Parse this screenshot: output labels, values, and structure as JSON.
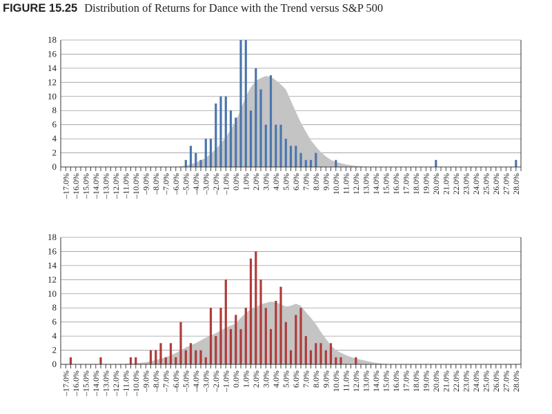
{
  "figure": {
    "label": "FIGURE 15.25",
    "title": "Distribution of Returns for Dance with the Trend versus S&P 500"
  },
  "chart_data": [
    {
      "type": "bar",
      "ylim": [
        0,
        18
      ],
      "yticks": [
        0,
        2,
        4,
        6,
        8,
        10,
        12,
        14,
        16,
        18
      ],
      "grid": true,
      "x_tick_labels": [
        "–17.0%",
        "–16.0%",
        "–15.0%",
        "–14.0%",
        "–13.0%",
        "–12.0%",
        "–11.0%",
        "–10.0%",
        "–9.0%",
        "–8.0%",
        "–7.0%",
        "–6.0%",
        "–5.0%",
        "–4.0%",
        "–3.0%",
        "–2.0%",
        "–1.0%",
        "0.0%",
        "1.0%",
        "2.0%",
        "3.0%",
        "4.0%",
        "5.0%",
        "6.0%",
        "7.0%",
        "8.0%",
        "9.0%",
        "10.0%",
        "11.0%",
        "12.0%",
        "13.0%",
        "14.0%",
        "15.0%",
        "16.0%",
        "17.0%",
        "18.0%",
        "19.0%",
        "20.0%",
        "21.0%",
        "22.0%",
        "23.0%",
        "24.0%",
        "25.0%",
        "26.0%",
        "27.0%",
        "28.0%"
      ],
      "bar_color": "#4A76AE",
      "area_color": "#C4C4C4",
      "bars": [
        {
          "x": -5.0,
          "y": 1
        },
        {
          "x": -4.5,
          "y": 3
        },
        {
          "x": -4.0,
          "y": 2
        },
        {
          "x": -3.5,
          "y": 1
        },
        {
          "x": -3.0,
          "y": 4
        },
        {
          "x": -2.5,
          "y": 4
        },
        {
          "x": -2.0,
          "y": 9
        },
        {
          "x": -1.5,
          "y": 10
        },
        {
          "x": -1.0,
          "y": 10
        },
        {
          "x": -0.5,
          "y": 8
        },
        {
          "x": 0.0,
          "y": 7
        },
        {
          "x": 0.5,
          "y": 18
        },
        {
          "x": 1.0,
          "y": 18
        },
        {
          "x": 1.5,
          "y": 8
        },
        {
          "x": 2.0,
          "y": 14
        },
        {
          "x": 2.5,
          "y": 11
        },
        {
          "x": 3.0,
          "y": 6
        },
        {
          "x": 3.5,
          "y": 13
        },
        {
          "x": 4.0,
          "y": 6
        },
        {
          "x": 4.5,
          "y": 6
        },
        {
          "x": 5.0,
          "y": 4
        },
        {
          "x": 5.5,
          "y": 3
        },
        {
          "x": 6.0,
          "y": 3
        },
        {
          "x": 6.5,
          "y": 2
        },
        {
          "x": 7.0,
          "y": 1
        },
        {
          "x": 7.5,
          "y": 1
        },
        {
          "x": 8.0,
          "y": 2
        },
        {
          "x": 10.0,
          "y": 1
        },
        {
          "x": 20.0,
          "y": 1
        },
        {
          "x": 28.0,
          "y": 1
        }
      ],
      "area": [
        {
          "x": -6.0,
          "y": 0
        },
        {
          "x": -5.0,
          "y": 0.2
        },
        {
          "x": -4.0,
          "y": 0.6
        },
        {
          "x": -3.0,
          "y": 1.3
        },
        {
          "x": -2.0,
          "y": 2.5
        },
        {
          "x": -1.0,
          "y": 4.2
        },
        {
          "x": 0.0,
          "y": 6.5
        },
        {
          "x": 0.5,
          "y": 8.2
        },
        {
          "x": 1.0,
          "y": 10.0
        },
        {
          "x": 1.5,
          "y": 11.3
        },
        {
          "x": 2.0,
          "y": 12.2
        },
        {
          "x": 2.5,
          "y": 12.6
        },
        {
          "x": 3.0,
          "y": 12.9
        },
        {
          "x": 3.5,
          "y": 12.8
        },
        {
          "x": 4.0,
          "y": 12.3
        },
        {
          "x": 4.5,
          "y": 11.7
        },
        {
          "x": 5.0,
          "y": 11.0
        },
        {
          "x": 5.5,
          "y": 9.4
        },
        {
          "x": 6.0,
          "y": 7.8
        },
        {
          "x": 6.5,
          "y": 6.3
        },
        {
          "x": 7.0,
          "y": 5.0
        },
        {
          "x": 7.5,
          "y": 3.8
        },
        {
          "x": 8.0,
          "y": 2.9
        },
        {
          "x": 8.5,
          "y": 2.1
        },
        {
          "x": 9.0,
          "y": 1.5
        },
        {
          "x": 9.5,
          "y": 1.0
        },
        {
          "x": 10.0,
          "y": 0.7
        },
        {
          "x": 11.0,
          "y": 0.35
        },
        {
          "x": 12.0,
          "y": 0.15
        },
        {
          "x": 13.0,
          "y": 0.05
        },
        {
          "x": 14.0,
          "y": 0
        }
      ]
    },
    {
      "type": "bar",
      "ylim": [
        0,
        18
      ],
      "yticks": [
        0,
        2,
        4,
        6,
        8,
        10,
        12,
        14,
        16,
        18
      ],
      "grid": true,
      "x_tick_labels": [
        "–17.0%",
        "–16.0%",
        "–15.0%",
        "–14.0%",
        "–13.0%",
        "–12.0%",
        "–11.0%",
        "–10.0%",
        "–9.0%",
        "–8.0%",
        "–7.0%",
        "–6.0%",
        "–5.0%",
        "–4.0%",
        "–3.0%",
        "–2.0%",
        "–1.0%",
        "0.0%",
        "1.0%",
        "2.0%",
        "3.0%",
        "4.0%",
        "5.0%",
        "6.0%",
        "7.0%",
        "8.0%",
        "9.0%",
        "10.0%",
        "11.0%",
        "12.0%",
        "13.0%",
        "14.0%",
        "15.0%",
        "16.0%",
        "17.0%",
        "18.0%",
        "19.0%",
        "20.0%",
        "21.0%",
        "22.0%",
        "23.0%",
        "24.0%",
        "25.0%",
        "26.0%",
        "27.0%",
        "28.0%"
      ],
      "bar_color": "#B03A3A",
      "area_color": "#C4C4C4",
      "bars": [
        {
          "x": -16.5,
          "y": 1
        },
        {
          "x": -13.5,
          "y": 1
        },
        {
          "x": -10.5,
          "y": 1
        },
        {
          "x": -10.0,
          "y": 1
        },
        {
          "x": -8.5,
          "y": 2
        },
        {
          "x": -8.0,
          "y": 2
        },
        {
          "x": -7.5,
          "y": 3
        },
        {
          "x": -7.0,
          "y": 1
        },
        {
          "x": -6.5,
          "y": 3
        },
        {
          "x": -6.0,
          "y": 1
        },
        {
          "x": -5.5,
          "y": 6
        },
        {
          "x": -5.0,
          "y": 2
        },
        {
          "x": -4.5,
          "y": 3
        },
        {
          "x": -4.0,
          "y": 2
        },
        {
          "x": -3.5,
          "y": 2
        },
        {
          "x": -3.0,
          "y": 1
        },
        {
          "x": -2.5,
          "y": 8
        },
        {
          "x": -2.0,
          "y": 4
        },
        {
          "x": -1.5,
          "y": 8
        },
        {
          "x": -1.0,
          "y": 12
        },
        {
          "x": -0.5,
          "y": 5
        },
        {
          "x": 0.0,
          "y": 7
        },
        {
          "x": 0.5,
          "y": 5
        },
        {
          "x": 1.0,
          "y": 8
        },
        {
          "x": 1.5,
          "y": 15
        },
        {
          "x": 2.0,
          "y": 16
        },
        {
          "x": 2.5,
          "y": 12
        },
        {
          "x": 3.0,
          "y": 8
        },
        {
          "x": 3.5,
          "y": 5
        },
        {
          "x": 4.0,
          "y": 9
        },
        {
          "x": 4.5,
          "y": 11
        },
        {
          "x": 5.0,
          "y": 6
        },
        {
          "x": 5.5,
          "y": 2
        },
        {
          "x": 6.0,
          "y": 7
        },
        {
          "x": 6.5,
          "y": 8
        },
        {
          "x": 7.0,
          "y": 4
        },
        {
          "x": 7.5,
          "y": 2
        },
        {
          "x": 8.0,
          "y": 3
        },
        {
          "x": 8.5,
          "y": 3
        },
        {
          "x": 9.0,
          "y": 2
        },
        {
          "x": 9.5,
          "y": 3
        },
        {
          "x": 10.0,
          "y": 1
        },
        {
          "x": 10.5,
          "y": 1
        },
        {
          "x": 12.0,
          "y": 1
        }
      ],
      "area": [
        {
          "x": -12.0,
          "y": 0
        },
        {
          "x": -10.0,
          "y": 0.15
        },
        {
          "x": -9.0,
          "y": 0.3
        },
        {
          "x": -8.0,
          "y": 0.6
        },
        {
          "x": -7.0,
          "y": 1.0
        },
        {
          "x": -6.0,
          "y": 1.6
        },
        {
          "x": -5.0,
          "y": 2.4
        },
        {
          "x": -4.0,
          "y": 3.0
        },
        {
          "x": -3.0,
          "y": 3.8
        },
        {
          "x": -2.0,
          "y": 4.4
        },
        {
          "x": -1.0,
          "y": 5.2
        },
        {
          "x": 0.0,
          "y": 5.8
        },
        {
          "x": 0.5,
          "y": 6.6
        },
        {
          "x": 1.0,
          "y": 7.3
        },
        {
          "x": 1.5,
          "y": 7.8
        },
        {
          "x": 2.0,
          "y": 8.1
        },
        {
          "x": 2.5,
          "y": 8.5
        },
        {
          "x": 3.0,
          "y": 8.7
        },
        {
          "x": 3.5,
          "y": 8.9
        },
        {
          "x": 4.0,
          "y": 8.8
        },
        {
          "x": 4.5,
          "y": 8.5
        },
        {
          "x": 5.0,
          "y": 8.2
        },
        {
          "x": 5.5,
          "y": 8.3
        },
        {
          "x": 6.0,
          "y": 8.6
        },
        {
          "x": 6.5,
          "y": 8.3
        },
        {
          "x": 7.0,
          "y": 7.4
        },
        {
          "x": 7.5,
          "y": 6.6
        },
        {
          "x": 8.0,
          "y": 5.7
        },
        {
          "x": 8.5,
          "y": 4.6
        },
        {
          "x": 9.0,
          "y": 3.6
        },
        {
          "x": 9.5,
          "y": 2.7
        },
        {
          "x": 10.0,
          "y": 2.0
        },
        {
          "x": 11.0,
          "y": 1.3
        },
        {
          "x": 12.0,
          "y": 0.8
        },
        {
          "x": 13.0,
          "y": 0.5
        },
        {
          "x": 14.0,
          "y": 0.2
        },
        {
          "x": 15.0,
          "y": 0.05
        },
        {
          "x": 16.0,
          "y": 0
        }
      ]
    }
  ]
}
